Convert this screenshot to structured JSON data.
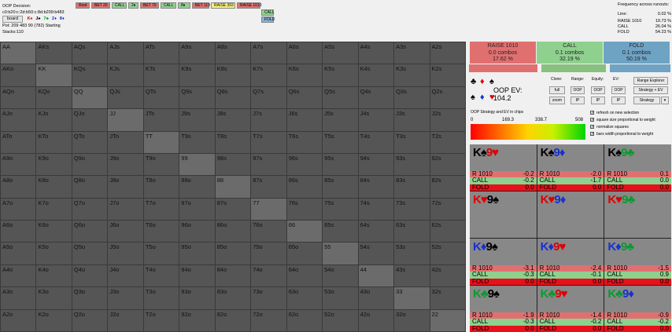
{
  "info": {
    "title": "OOP Decision:",
    "hand_id": "c0:b20:c:2d:b50:c:8d:b209:b483",
    "board_label": "board",
    "suits": [
      "K♦",
      "J♠",
      "7♣",
      "2♦",
      "8♦"
    ],
    "pot_line": "Pot: 209 483 90 (782) Starting Stacks:110"
  },
  "tree": [
    {
      "label": "Root",
      "bg": "#e07070"
    },
    {
      "label": "BET 20",
      "bg": "#e07070"
    },
    {
      "label": "CALL",
      "bg": "#8fd08f"
    },
    {
      "label": "2♦",
      "bg": "#8fd08f"
    },
    {
      "label": "BET 70",
      "bg": "#e07070"
    },
    {
      "label": "CALL",
      "bg": "#8fd08f"
    },
    {
      "label": "8♦",
      "bg": "#8fd08f"
    },
    {
      "label": "BET 119",
      "bg": "#e07070"
    },
    {
      "label": "RAISE 393",
      "bg": "#f5f07a"
    },
    {
      "label": "RAISE 1010",
      "bg": "#e07070"
    },
    {
      "label": "CALL",
      "bg": "#8fd08f"
    },
    {
      "label": "FOLD",
      "bg": "#7fb3d3"
    }
  ],
  "freq": {
    "title": "Frequency across runouts:",
    "line_label": "Line:",
    "line_value": "0.02 %",
    "rows": [
      {
        "label": "RAISE 1010",
        "value": "19.73 %"
      },
      {
        "label": "CALL",
        "value": "26.04 %"
      },
      {
        "label": "FOLD",
        "value": "54.23 %"
      }
    ]
  },
  "summary": [
    {
      "label": "RAISE 1010",
      "combos": "0.0 combos",
      "pct": "17.62 %",
      "bg": "#e07070"
    },
    {
      "label": "CALL",
      "combos": "0.1 combos",
      "pct": "32.19 %",
      "bg": "#8fd08f"
    },
    {
      "label": "FOLD",
      "combos": "0.1 combos",
      "pct": "50.19 %",
      "bg": "#6fa3c3"
    }
  ],
  "oop_ev": {
    "label": "OOP EV:",
    "value": "104.2"
  },
  "controls": {
    "clone": "Clone:",
    "range": "Range:",
    "equity": "Equity:",
    "ev": "EV:",
    "full": "full",
    "zoom": "zoom",
    "oop1": "OOP",
    "ip1": "IP",
    "oop2": "OOP",
    "ip2": "IP",
    "oop3": "OOP",
    "ip3": "IP",
    "range_explorer": "Range Explorer",
    "strategy_ev": "Strategy + EV",
    "strategy": "Strategy"
  },
  "checks": [
    "refresh on new selection",
    "square size proportional to weight",
    "normalize squares",
    "bars width proportional to weight"
  ],
  "gradient": {
    "title": "OOP Strategy and EV in chips",
    "ticks": [
      "0",
      "169.3",
      "338.7",
      "508"
    ]
  },
  "grid_labels": [
    "AA",
    "AKs",
    "AQs",
    "AJs",
    "ATs",
    "A9s",
    "A8s",
    "A7s",
    "A6s",
    "A5s",
    "A4s",
    "A3s",
    "A2s",
    "AKo",
    "KK",
    "KQs",
    "KJs",
    "KTs",
    "K9s",
    "K8s",
    "K7s",
    "K6s",
    "K5s",
    "K4s",
    "K3s",
    "K2s",
    "AQo",
    "KQo",
    "QQ",
    "QJs",
    "QTs",
    "Q9s",
    "Q8s",
    "Q7s",
    "Q6s",
    "Q5s",
    "Q4s",
    "Q3s",
    "Q2s",
    "AJo",
    "KJo",
    "QJo",
    "JJ",
    "JTs",
    "J9s",
    "J8s",
    "J7s",
    "J6s",
    "J5s",
    "J4s",
    "J3s",
    "J2s",
    "ATo",
    "KTo",
    "QTo",
    "JTo",
    "TT",
    "T9s",
    "T8s",
    "T7s",
    "T6s",
    "T5s",
    "T4s",
    "T3s",
    "T2s",
    "A9o",
    "K9o",
    "Q9o",
    "J9o",
    "T9o",
    "99",
    "98s",
    "97s",
    "96s",
    "95s",
    "94s",
    "93s",
    "92s",
    "A8o",
    "K8o",
    "Q8o",
    "J8o",
    "T8o",
    "98o",
    "88",
    "87s",
    "86s",
    "85s",
    "84s",
    "83s",
    "82s",
    "A7o",
    "K7o",
    "Q7o",
    "J7o",
    "T7o",
    "97o",
    "87o",
    "77",
    "76s",
    "75s",
    "74s",
    "73s",
    "72s",
    "A6o",
    "K6o",
    "Q6o",
    "J6o",
    "T6o",
    "96o",
    "86o",
    "76o",
    "66",
    "65s",
    "64s",
    "63s",
    "62s",
    "A5o",
    "K5o",
    "Q5o",
    "J5o",
    "T5o",
    "95o",
    "85o",
    "75o",
    "65o",
    "55",
    "54s",
    "53s",
    "52s",
    "A4o",
    "K4o",
    "Q4o",
    "J4o",
    "T4o",
    "94o",
    "84o",
    "74o",
    "64o",
    "54o",
    "44",
    "43s",
    "42s",
    "A3o",
    "K3o",
    "Q3o",
    "J3o",
    "T3o",
    "93o",
    "83o",
    "73o",
    "63o",
    "53o",
    "43o",
    "33",
    "32s",
    "A2o",
    "K2o",
    "Q2o",
    "J2o",
    "T2o",
    "92o",
    "82o",
    "72o",
    "62o",
    "52o",
    "42o",
    "32o",
    "22"
  ],
  "combos": [
    {
      "name": "K♠9♥",
      "suits": [
        "black",
        "red"
      ],
      "r": "-0.2",
      "c": "-0.2",
      "f": "0.0",
      "bars": "rcf"
    },
    {
      "name": "K♠9♦",
      "suits": [
        "black",
        "blue"
      ],
      "r": "-2.0",
      "c": "-1.7",
      "f": "0.0",
      "bars": "rcf"
    },
    {
      "name": "K♠9♣",
      "suits": [
        "black",
        "green"
      ],
      "r": "0.1",
      "c": "0.0",
      "f": "0.0",
      "bars": "rcf"
    },
    {
      "name": "K♥9♠",
      "suits": [
        "red",
        "black"
      ],
      "r": "",
      "c": "",
      "f": "",
      "bars": ""
    },
    {
      "name": "K♥9♦",
      "suits": [
        "red",
        "blue"
      ],
      "r": "",
      "c": "",
      "f": "",
      "bars": ""
    },
    {
      "name": "K♥9♣",
      "suits": [
        "red",
        "green"
      ],
      "r": "",
      "c": "",
      "f": "",
      "bars": ""
    },
    {
      "name": "K♦9♠",
      "suits": [
        "blue",
        "black"
      ],
      "r": "-3.1",
      "c": "-0.3",
      "f": "0.0",
      "bars": "rcf"
    },
    {
      "name": "K♦9♥",
      "suits": [
        "blue",
        "red"
      ],
      "r": "-2.4",
      "c": "-0.1",
      "f": "0.0",
      "bars": "rcf"
    },
    {
      "name": "K♦9♣",
      "suits": [
        "blue",
        "green"
      ],
      "r": "-1.5",
      "c": "0.9",
      "f": "0.0",
      "bars": "rcf"
    },
    {
      "name": "K♣9♠",
      "suits": [
        "green",
        "black"
      ],
      "r": "-1.9",
      "c": "-0.3",
      "f": "0.0",
      "bars": "rcf"
    },
    {
      "name": "K♣9♥",
      "suits": [
        "green",
        "red"
      ],
      "r": "-1.4",
      "c": "-0.2",
      "f": "0.0",
      "bars": "rcf"
    },
    {
      "name": "K♣9♦",
      "suits": [
        "green",
        "blue"
      ],
      "r": "-0.9",
      "c": "-0.2",
      "f": "0.0",
      "bars": "rcf"
    }
  ],
  "colors": {
    "raise": "#e07070",
    "call": "#8fd08f",
    "fold": "#6fa3c3",
    "fold_bar": "#e8101a"
  }
}
